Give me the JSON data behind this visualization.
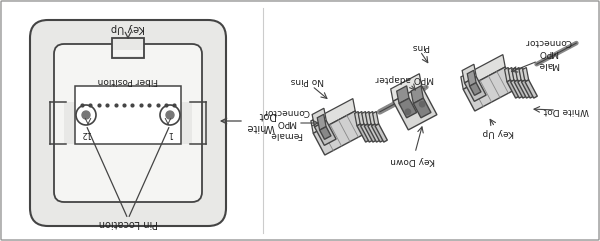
{
  "bg_color": "#f2f2f0",
  "border_color": "#999999",
  "fig_w": 6.0,
  "fig_h": 2.41,
  "dpi": 100,
  "line_color": "#444444",
  "text_color": "#222222",
  "labels": {
    "key_up_left": "Key Up",
    "white_dot_left": "White\nDot",
    "pin_location": "Pin Location",
    "fiber_position": "Fiber Position",
    "label_1": "1",
    "label_12": "12",
    "pins": "Pins",
    "no_pins": "No Pins",
    "mpo_adapter": "MPO adapter",
    "female_mpo": "Female\nMPO\nConnector",
    "male_mpo": "Male\nMPO\nConnector",
    "white_dot_right": "White Dot",
    "key_up_right": "Key Up",
    "key_down": "Key Down"
  }
}
